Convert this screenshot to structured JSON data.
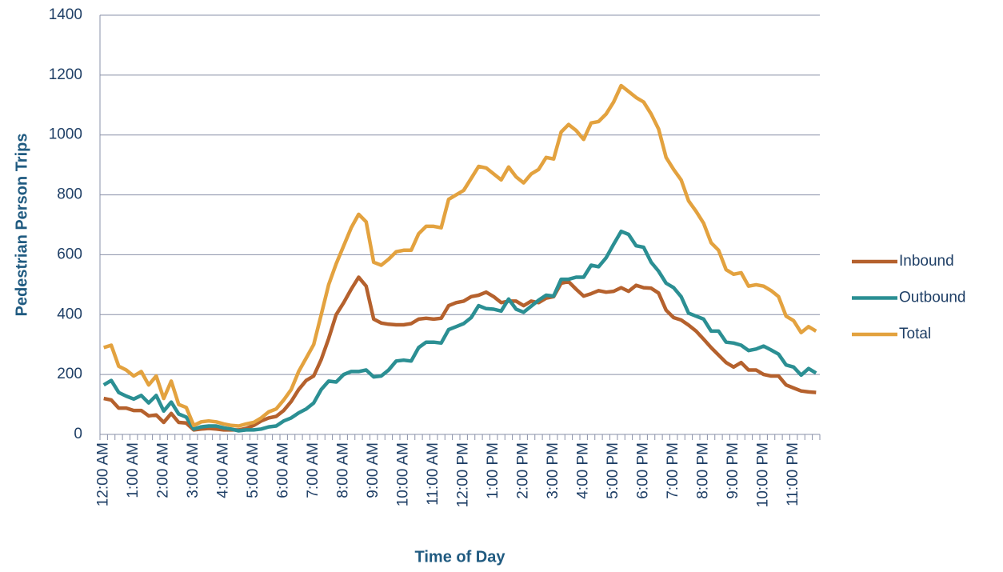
{
  "chart_data": {
    "type": "line",
    "x_label": "Time of Day",
    "y_label": "Pedestrian Person Trips",
    "categories": [
      "12:00 AM",
      null,
      null,
      null,
      "1:00 AM",
      null,
      null,
      null,
      "2:00 AM",
      null,
      null,
      null,
      "3:00 AM",
      null,
      null,
      null,
      "4:00 AM",
      null,
      null,
      null,
      "5:00 AM",
      null,
      null,
      null,
      "6:00 AM",
      null,
      null,
      null,
      "7:00 AM",
      null,
      null,
      null,
      "8:00 AM",
      null,
      null,
      null,
      "9:00 AM",
      null,
      null,
      null,
      "10:00 AM",
      null,
      null,
      null,
      "11:00 AM",
      null,
      null,
      null,
      "12:00 PM",
      null,
      null,
      null,
      "1:00 PM",
      null,
      null,
      null,
      "2:00 PM",
      null,
      null,
      null,
      "3:00 PM",
      null,
      null,
      null,
      "4:00 PM",
      null,
      null,
      null,
      "5:00 PM",
      null,
      null,
      null,
      "6:00 PM",
      null,
      null,
      null,
      "7:00 PM",
      null,
      null,
      null,
      "8:00 PM",
      null,
      null,
      null,
      "9:00 PM",
      null,
      null,
      null,
      "10:00 PM",
      null,
      null,
      null,
      "11:00 PM",
      null,
      null,
      null
    ],
    "series": [
      {
        "name": "Inbound",
        "color": "#b5612d",
        "values": [
          120,
          115,
          88,
          88,
          80,
          80,
          62,
          65,
          40,
          70,
          40,
          38,
          15,
          18,
          20,
          18,
          15,
          15,
          15,
          20,
          30,
          45,
          55,
          60,
          80,
          110,
          150,
          180,
          195,
          250,
          320,
          400,
          440,
          485,
          525,
          495,
          385,
          372,
          368,
          366,
          366,
          370,
          385,
          388,
          385,
          388,
          430,
          440,
          445,
          460,
          465,
          475,
          460,
          440,
          445,
          445,
          430,
          445,
          440,
          455,
          460,
          505,
          510,
          485,
          462,
          470,
          480,
          475,
          478,
          490,
          478,
          498,
          490,
          488,
          472,
          415,
          390,
          382,
          365,
          345,
          318,
          290,
          265,
          240,
          225,
          240,
          215,
          215,
          200,
          195,
          195,
          165,
          155,
          145,
          142,
          140
        ]
      },
      {
        "name": "Outbound",
        "color": "#2b8f93",
        "values": [
          165,
          180,
          140,
          128,
          118,
          130,
          105,
          130,
          78,
          108,
          68,
          58,
          18,
          25,
          28,
          28,
          22,
          18,
          12,
          15,
          15,
          18,
          25,
          28,
          45,
          55,
          72,
          85,
          105,
          150,
          178,
          175,
          200,
          210,
          210,
          215,
          192,
          195,
          215,
          245,
          248,
          245,
          290,
          308,
          308,
          305,
          350,
          360,
          370,
          390,
          430,
          420,
          418,
          412,
          452,
          418,
          408,
          428,
          448,
          465,
          462,
          518,
          518,
          525,
          525,
          565,
          560,
          590,
          635,
          678,
          668,
          630,
          625,
          575,
          545,
          505,
          490,
          460,
          405,
          395,
          385,
          345,
          345,
          308,
          305,
          298,
          280,
          285,
          295,
          282,
          268,
          232,
          225,
          198,
          220,
          205
        ]
      },
      {
        "name": "Total",
        "color": "#e3a23f",
        "values": [
          290,
          298,
          228,
          215,
          195,
          210,
          165,
          195,
          120,
          178,
          100,
          90,
          30,
          42,
          45,
          42,
          35,
          30,
          28,
          35,
          40,
          55,
          75,
          85,
          115,
          150,
          210,
          255,
          300,
          400,
          500,
          570,
          630,
          690,
          735,
          710,
          575,
          565,
          585,
          610,
          615,
          615,
          670,
          695,
          695,
          690,
          785,
          800,
          815,
          855,
          895,
          890,
          870,
          850,
          893,
          860,
          840,
          870,
          885,
          925,
          920,
          1010,
          1035,
          1015,
          985,
          1040,
          1045,
          1070,
          1110,
          1165,
          1145,
          1125,
          1110,
          1070,
          1020,
          925,
          885,
          850,
          780,
          745,
          705,
          640,
          615,
          550,
          535,
          540,
          495,
          500,
          495,
          480,
          460,
          395,
          380,
          340,
          360,
          345
        ]
      }
    ],
    "ylim": [
      0,
      1400
    ],
    "yticks": [
      0,
      200,
      400,
      600,
      800,
      1000,
      1200,
      1400
    ],
    "grid": true,
    "legend": "right"
  }
}
